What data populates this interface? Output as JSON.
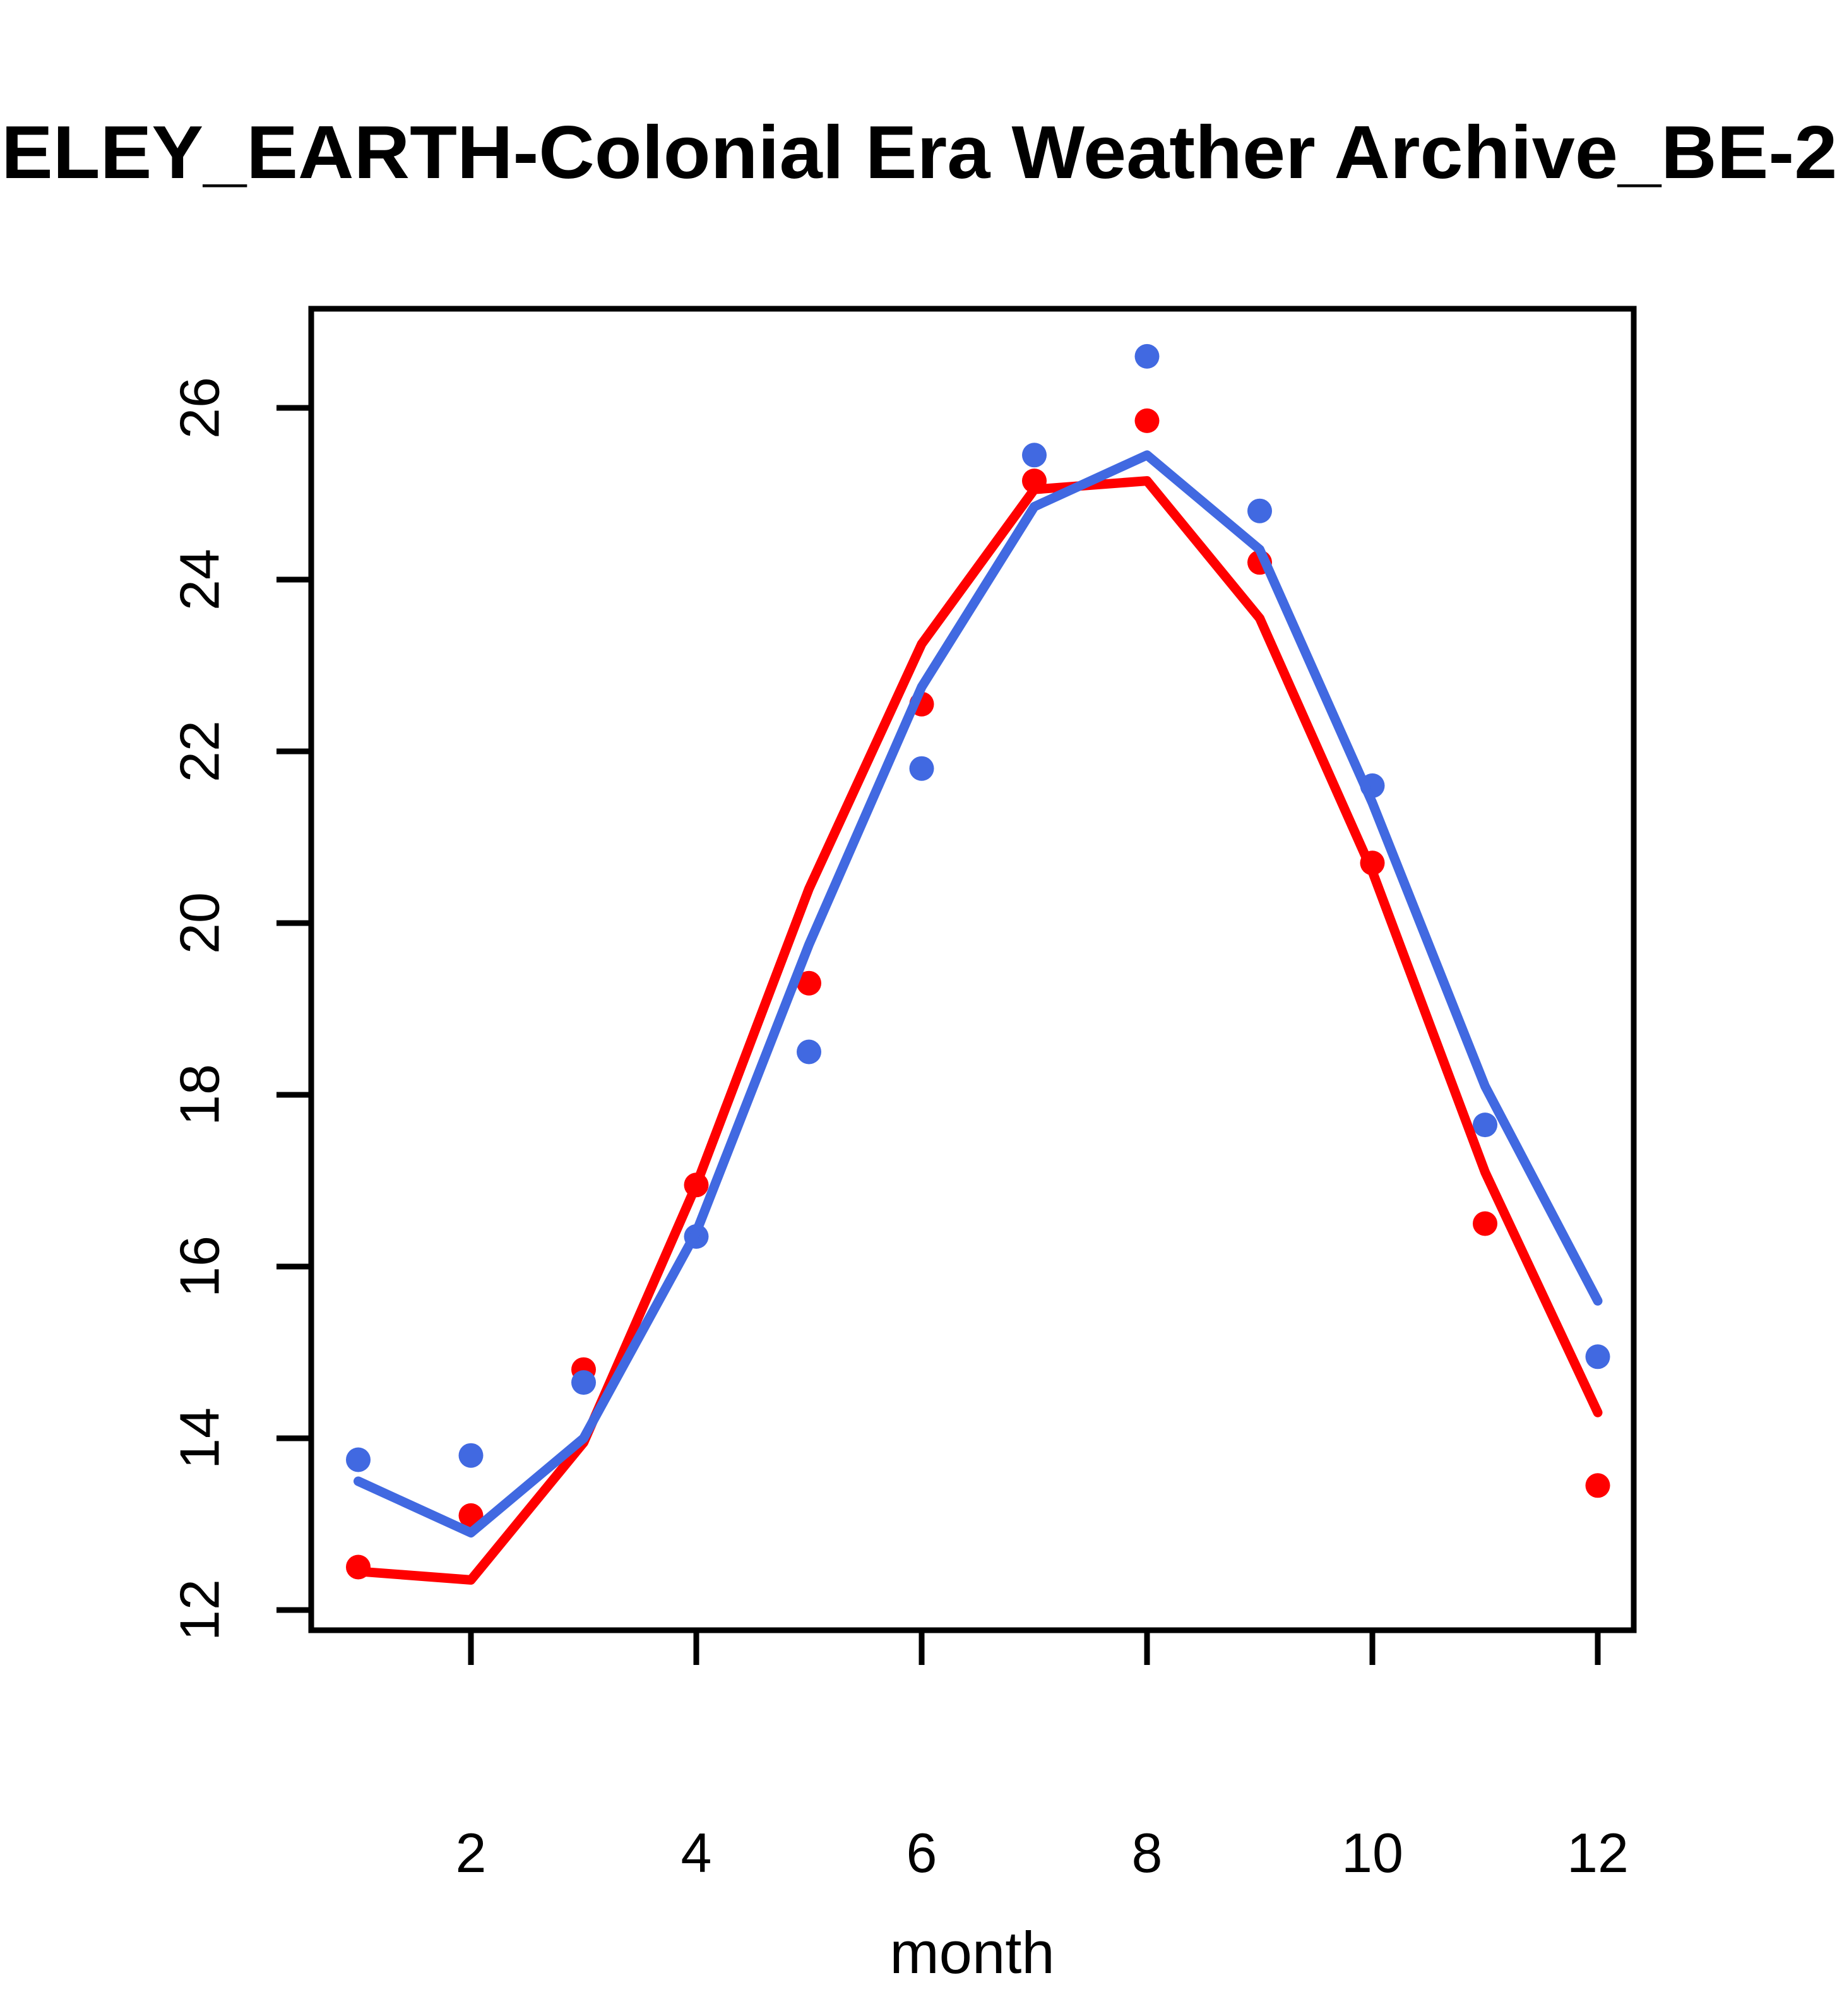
{
  "title": "ELEY_EARTH-Colonial Era Weather Archive_BE-2",
  "xlabel": "month",
  "colors": {
    "red": "#FF0000",
    "blue": "#4169E1",
    "axis": "#000000",
    "background": "#FFFFFF"
  },
  "chart_data": {
    "type": "scatter",
    "title": "ELEY_EARTH-Colonial Era Weather Archive_BE-2",
    "xlabel": "month",
    "ylabel": "",
    "grid": false,
    "legend": false,
    "x": [
      1,
      2,
      3,
      4,
      5,
      6,
      7,
      8,
      9,
      10,
      11,
      12
    ],
    "x_ticks": [
      2,
      4,
      6,
      8,
      10,
      12
    ],
    "y_ticks": [
      12,
      14,
      16,
      18,
      20,
      22,
      24,
      26
    ],
    "xlim": [
      0.56,
      12.44
    ],
    "ylim": [
      11.76,
      27.15
    ],
    "series": [
      {
        "name": "red-points",
        "type": "points",
        "color": "red",
        "values": [
          12.5,
          13.1,
          14.8,
          16.95,
          19.3,
          22.55,
          25.15,
          25.85,
          24.2,
          20.7,
          16.5,
          13.45
        ]
      },
      {
        "name": "blue-points",
        "type": "points",
        "color": "blue",
        "values": [
          13.75,
          13.8,
          14.65,
          16.35,
          18.5,
          21.8,
          25.45,
          26.6,
          24.8,
          21.6,
          17.65,
          14.95
        ]
      },
      {
        "name": "red-line",
        "type": "line",
        "color": "red",
        "values": [
          12.45,
          12.35,
          13.95,
          16.95,
          20.4,
          23.25,
          25.05,
          25.15,
          23.55,
          20.6,
          17.1,
          14.3
        ]
      },
      {
        "name": "blue-line",
        "type": "line",
        "color": "blue",
        "values": [
          13.5,
          12.9,
          14.0,
          16.4,
          19.75,
          22.75,
          24.85,
          25.45,
          24.35,
          21.4,
          18.1,
          15.6
        ]
      }
    ]
  }
}
